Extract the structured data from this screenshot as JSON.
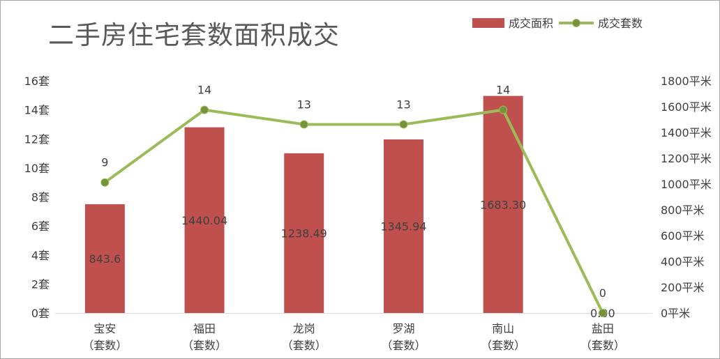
{
  "chart_data": {
    "type": "bar",
    "title": "二手房住宅套数面积成交",
    "categories": [
      [
        "宝安",
        "（套数）"
      ],
      [
        "福田",
        "（套数）"
      ],
      [
        "龙岗",
        "（套数）"
      ],
      [
        "罗湖",
        "（套数）"
      ],
      [
        "南山",
        "（套数）"
      ],
      [
        "盐田",
        "（套数）"
      ]
    ],
    "legend_position": "top-right",
    "grid": false,
    "series": [
      {
        "name": "成交面积",
        "type": "bar",
        "axis": "right",
        "color": "#c0504d",
        "values": [
          843.6,
          1440.04,
          1238.49,
          1345.94,
          1683.3,
          0.0
        ],
        "labels": [
          "843.6",
          "1440.04",
          "1238.49",
          "1345.94",
          "1683.30",
          "0.00"
        ]
      },
      {
        "name": "成交套数",
        "type": "line",
        "axis": "left",
        "color": "#9bbb59",
        "values": [
          9,
          14,
          13,
          13,
          14,
          0
        ],
        "labels": [
          "9",
          "14",
          "13",
          "13",
          "14",
          "0"
        ]
      }
    ],
    "y_left": {
      "ylim": [
        0,
        16
      ],
      "ticks": [
        0,
        2,
        4,
        6,
        8,
        10,
        12,
        14,
        16
      ],
      "tick_labels": [
        "0套",
        "2套",
        "4套",
        "6套",
        "8套",
        "10套",
        "12套",
        "14套",
        "16套"
      ]
    },
    "y_right": {
      "ylim": [
        0,
        1800
      ],
      "ticks": [
        0,
        200,
        400,
        600,
        800,
        1000,
        1200,
        1400,
        1600,
        1800
      ],
      "tick_labels": [
        "0平米",
        "200平米",
        "400平米",
        "600平米",
        "800平米",
        "1000平米",
        "1200平米",
        "1400平米",
        "1600平米",
        "1800平米"
      ]
    }
  }
}
